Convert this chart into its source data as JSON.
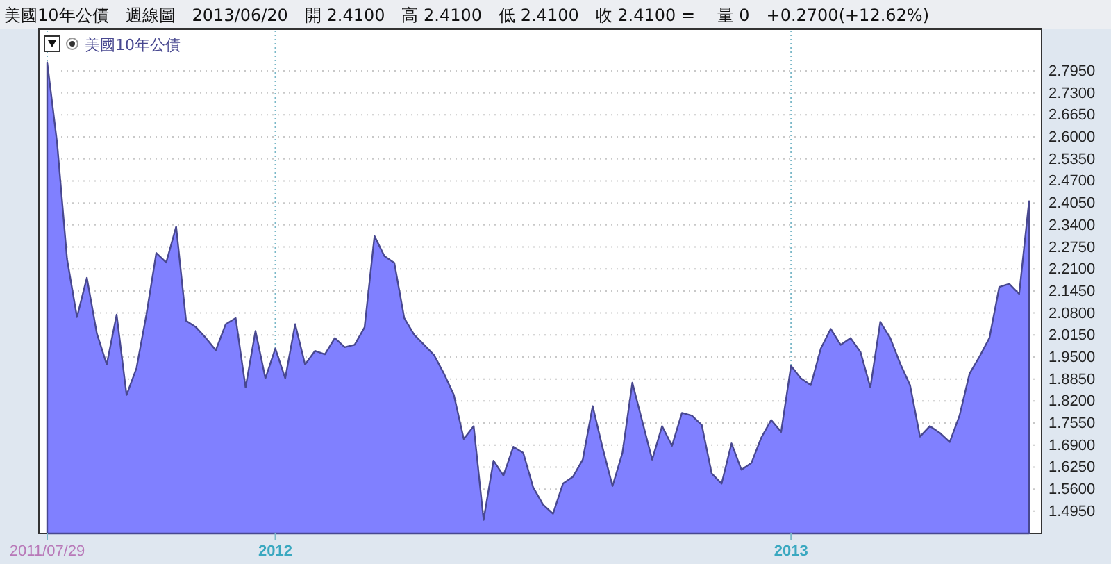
{
  "chart_data": {
    "type": "area",
    "title": "美國10年公債　週線圖　2013/06/20　開 2.4100　高 2.4100　低 2.4100　收 2.4100 =　 量 0　+0.2700(+12.62%)",
    "categories": [
      "2011/07/29",
      null,
      null,
      null,
      null,
      null,
      null,
      null,
      null,
      null,
      null,
      null,
      null,
      null,
      null,
      null,
      null,
      null,
      null,
      null,
      null,
      null,
      null,
      "2012",
      null,
      null,
      null,
      null,
      null,
      null,
      null,
      null,
      null,
      null,
      null,
      null,
      null,
      null,
      null,
      null,
      null,
      null,
      null,
      null,
      null,
      null,
      null,
      null,
      null,
      null,
      null,
      null,
      null,
      null,
      null,
      null,
      null,
      null,
      null,
      null,
      null,
      null,
      null,
      null,
      null,
      null,
      null,
      null,
      null,
      null,
      null,
      null,
      null,
      null,
      null,
      "2013",
      null,
      null,
      null,
      null,
      null,
      null,
      null,
      null,
      null,
      null,
      null,
      null,
      null,
      null,
      null,
      null,
      null,
      null,
      null,
      null,
      null,
      null,
      null,
      null
    ],
    "series": [
      {
        "name": "美國10年公債",
        "color": "#8080ff",
        "values": [
          2.82,
          2.581,
          2.239,
          2.068,
          2.184,
          2.02,
          1.928,
          2.075,
          1.838,
          1.917,
          2.075,
          2.257,
          2.229,
          2.335,
          2.057,
          2.038,
          2.006,
          1.97,
          2.047,
          2.065,
          1.86,
          2.027,
          1.887,
          1.975,
          1.887,
          2.047,
          1.928,
          1.968,
          1.958,
          2.006,
          1.979,
          1.986,
          2.038,
          2.307,
          2.248,
          2.228,
          2.065,
          2.016,
          1.986,
          1.956,
          1.901,
          1.838,
          1.708,
          1.746,
          1.469,
          1.644,
          1.6,
          1.685,
          1.667,
          1.565,
          1.514,
          1.487,
          1.576,
          1.596,
          1.647,
          1.805,
          1.682,
          1.569,
          1.667,
          1.874,
          1.76,
          1.647,
          1.746,
          1.688,
          1.785,
          1.777,
          1.749,
          1.606,
          1.576,
          1.695,
          1.617,
          1.637,
          1.712,
          1.764,
          1.729,
          1.924,
          1.887,
          1.867,
          1.975,
          2.033,
          1.986,
          2.006,
          1.965,
          1.86,
          2.054,
          2.006,
          1.931,
          1.867,
          1.715,
          1.746,
          1.726,
          1.699,
          1.778,
          1.901,
          1.951,
          2.006,
          2.157,
          2.166,
          2.136,
          2.41
        ]
      }
    ],
    "ylim": [
      1.429,
      2.918
    ],
    "yticks": [
      {
        "value": 2.795,
        "label": "2.7950"
      },
      {
        "value": 2.73,
        "label": "2.7300"
      },
      {
        "value": 2.665,
        "label": "2.6650"
      },
      {
        "value": 2.6,
        "label": "2.6000"
      },
      {
        "value": 2.535,
        "label": "2.5350"
      },
      {
        "value": 2.47,
        "label": "2.4700"
      },
      {
        "value": 2.405,
        "label": "2.4050"
      },
      {
        "value": 2.34,
        "label": "2.3400"
      },
      {
        "value": 2.275,
        "label": "2.2750"
      },
      {
        "value": 2.21,
        "label": "2.2100"
      },
      {
        "value": 2.145,
        "label": "2.1450"
      },
      {
        "value": 2.08,
        "label": "2.0800"
      },
      {
        "value": 2.015,
        "label": "2.0150"
      },
      {
        "value": 1.95,
        "label": "1.9500"
      },
      {
        "value": 1.885,
        "label": "1.8850"
      },
      {
        "value": 1.82,
        "label": "1.8200"
      },
      {
        "value": 1.755,
        "label": "1.7550"
      },
      {
        "value": 1.69,
        "label": "1.6900"
      },
      {
        "value": 1.625,
        "label": "1.6250"
      },
      {
        "value": 1.56,
        "label": "1.5600"
      },
      {
        "value": 1.495,
        "label": "1.4950"
      }
    ],
    "grid": true,
    "legend": "top left"
  }
}
